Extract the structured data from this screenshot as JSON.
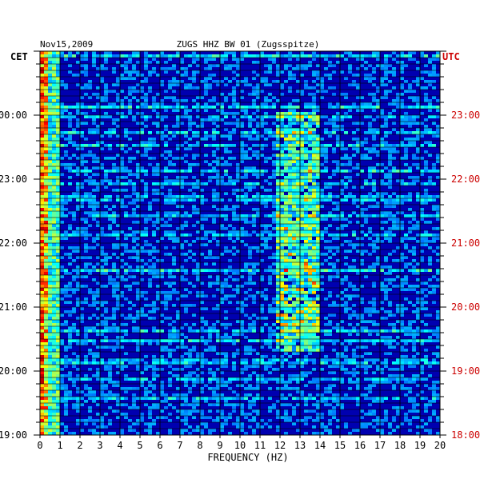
{
  "chart_data": {
    "type": "heatmap",
    "header_left": "Nov15,2009",
    "title": "ZUGS HHZ BW 01 (Zugsspitze)",
    "left_axis_label": "CET",
    "right_axis_label": "UTC",
    "xlabel": "FREQUENCY (HZ)",
    "xlim": [
      0,
      20
    ],
    "x_ticks": [
      "0",
      "1",
      "2",
      "3",
      "4",
      "5",
      "6",
      "7",
      "8",
      "9",
      "10",
      "11",
      "12",
      "13",
      "14",
      "15",
      "16",
      "17",
      "18",
      "19",
      "20"
    ],
    "y_ticks_cet": [
      "19:00",
      "20:00",
      "21:00",
      "22:00",
      "23:00",
      "00:00"
    ],
    "y_ticks_utc": [
      "18:00",
      "19:00",
      "20:00",
      "21:00",
      "22:00",
      "23:00"
    ],
    "colors": {
      "background": "#0000b0",
      "left_label": "#000000",
      "right_label": "#cc0000",
      "grid": "#000000"
    }
  }
}
